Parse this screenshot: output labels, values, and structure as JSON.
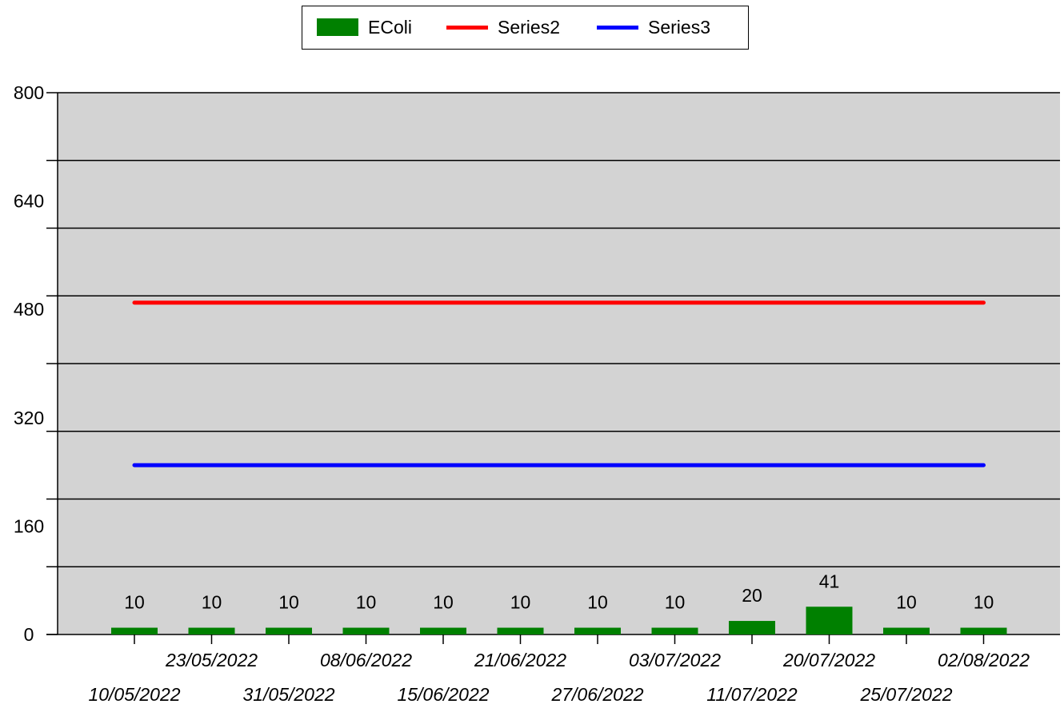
{
  "chart_data": {
    "type": "bar",
    "categories": [
      "10/05/2022",
      "23/05/2022",
      "31/05/2022",
      "08/06/2022",
      "15/06/2022",
      "21/06/2022",
      "27/06/2022",
      "03/07/2022",
      "11/07/2022",
      "20/07/2022",
      "25/07/2022",
      "02/08/2022"
    ],
    "series": [
      {
        "name": "EColi",
        "type": "bar",
        "values": [
          10,
          10,
          10,
          10,
          10,
          10,
          10,
          10,
          20,
          41,
          10,
          10
        ],
        "color": "#008000"
      },
      {
        "name": "Series2",
        "type": "line",
        "values": [
          490,
          490,
          490,
          490,
          490,
          490,
          490,
          490,
          490,
          490,
          490,
          490
        ],
        "color": "#ff0000"
      },
      {
        "name": "Series3",
        "type": "line",
        "values": [
          250,
          250,
          250,
          250,
          250,
          250,
          250,
          250,
          250,
          250,
          250,
          250
        ],
        "color": "#0000ff"
      }
    ],
    "data_labels": [
      "10",
      "10",
      "10",
      "10",
      "10",
      "10",
      "10",
      "10",
      "20",
      "41",
      "10",
      "10"
    ],
    "y_ticks": [
      "0",
      "160",
      "320",
      "480",
      "640",
      "800"
    ],
    "ylim": [
      0,
      800
    ],
    "grid": true,
    "legend_position": "top-center",
    "plot_background": "#d3d3d3"
  }
}
